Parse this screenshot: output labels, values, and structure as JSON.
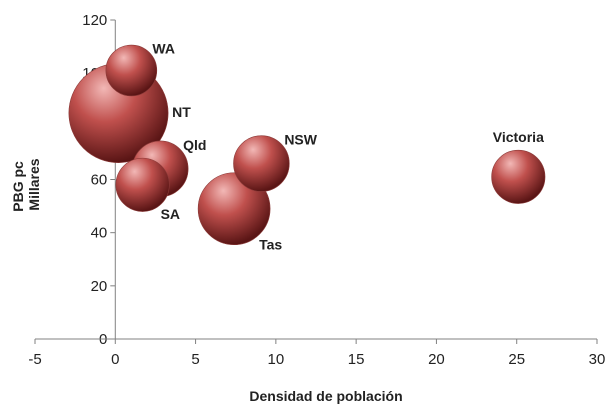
{
  "chart_data": {
    "type": "bubble",
    "title": "",
    "xlabel": "Densidad de población",
    "ylabel_lines": [
      "PBG pc",
      "Millares"
    ],
    "xlim": [
      -5,
      30
    ],
    "ylim": [
      0,
      120
    ],
    "x_ticks": [
      -5,
      0,
      5,
      10,
      15,
      20,
      25,
      30
    ],
    "y_ticks": [
      0,
      20,
      40,
      60,
      80,
      100,
      120
    ],
    "bubble_color": "#c0504d",
    "bubble_highlight": "#f2b8b6",
    "bubble_shadow": "#5a1515",
    "grid": false,
    "legend": "none",
    "points": [
      {
        "label": "NT",
        "x": 0.2,
        "y": 85,
        "size": 1.9,
        "label_pos": "right"
      },
      {
        "label": "WA",
        "x": 1.0,
        "y": 101,
        "size": 0.5,
        "label_pos": "top-right"
      },
      {
        "label": "SA",
        "x": 1.7,
        "y": 58,
        "size": 0.55,
        "label_pos": "bottom-right"
      },
      {
        "label": "Qld",
        "x": 2.8,
        "y": 64,
        "size": 0.6,
        "label_pos": "top-right"
      },
      {
        "label": "Tas",
        "x": 7.4,
        "y": 49,
        "size": 1.0,
        "label_pos": "bottom-right"
      },
      {
        "label": "NSW",
        "x": 9.1,
        "y": 66,
        "size": 0.6,
        "label_pos": "top-right"
      },
      {
        "label": "Victoria",
        "x": 25.1,
        "y": 61,
        "size": 0.55,
        "label_pos": "top"
      }
    ]
  }
}
